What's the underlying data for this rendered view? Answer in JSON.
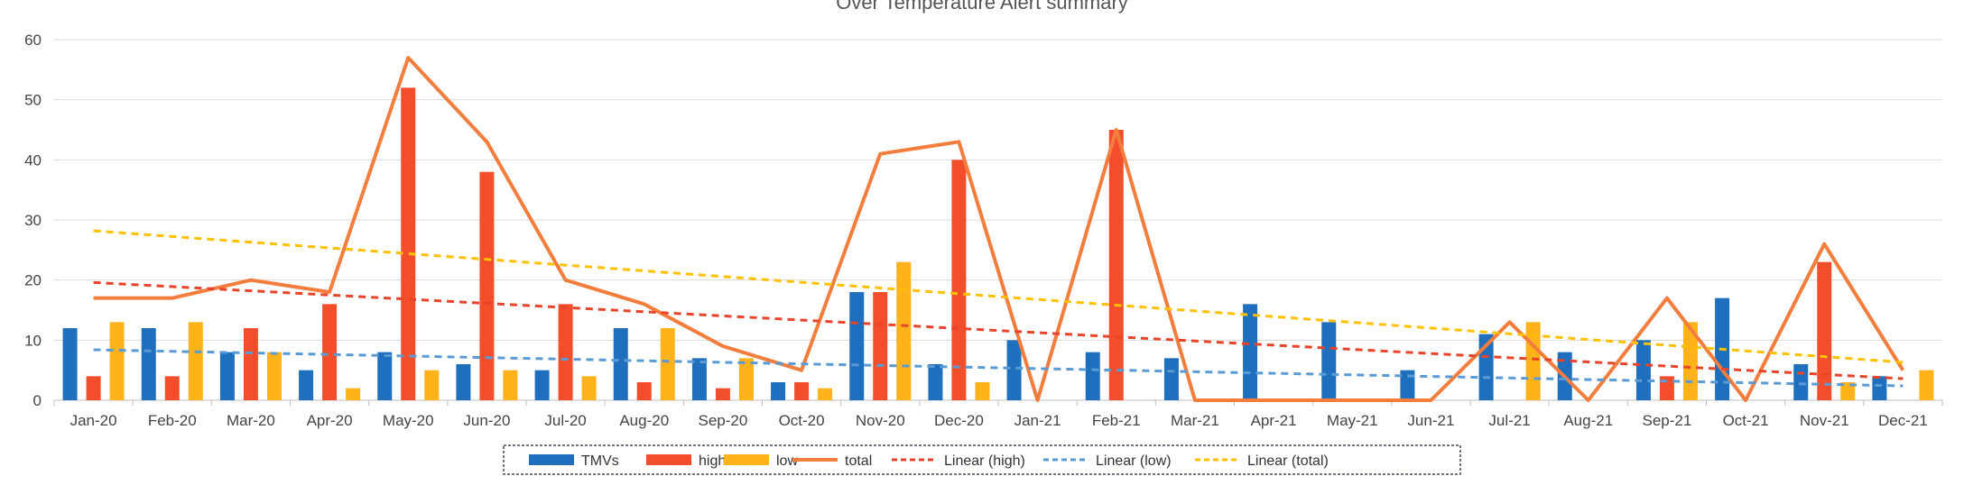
{
  "chart_data": {
    "type": "bar",
    "title": "Over Temperature Alert summary",
    "categories": [
      "Jan-20",
      "Feb-20",
      "Mar-20",
      "Apr-20",
      "May-20",
      "Jun-20",
      "Jul-20",
      "Aug-20",
      "Sep-20",
      "Oct-20",
      "Nov-20",
      "Dec-20",
      "Jan-21",
      "Feb-21",
      "Mar-21",
      "Apr-21",
      "May-21",
      "Jun-21",
      "Jul-21",
      "Aug-21",
      "Sep-21",
      "Oct-21",
      "Nov-21",
      "Dec-21"
    ],
    "ylim": [
      0,
      60
    ],
    "yticks": [
      0,
      10,
      20,
      30,
      40,
      50,
      60
    ],
    "grid": true,
    "legend_position": "bottom",
    "series": [
      {
        "name": "TMVs",
        "kind": "bar",
        "color": "#1f6fbf",
        "values": [
          12,
          12,
          8,
          5,
          8,
          6,
          5,
          12,
          7,
          3,
          18,
          6,
          10,
          8,
          7,
          16,
          13,
          5,
          11,
          8,
          10,
          17,
          6,
          4
        ]
      },
      {
        "name": "high",
        "kind": "bar",
        "color": "#f24e2b",
        "values": [
          4,
          4,
          12,
          16,
          52,
          38,
          16,
          3,
          2,
          3,
          18,
          40,
          0,
          45,
          0,
          0,
          0,
          0,
          0,
          0,
          4,
          0,
          23,
          0
        ]
      },
      {
        "name": "low",
        "kind": "bar",
        "color": "#ffb21a",
        "values": [
          13,
          13,
          8,
          2,
          5,
          5,
          4,
          12,
          7,
          2,
          23,
          3,
          0,
          0,
          0,
          0,
          0,
          0,
          13,
          0,
          13,
          0,
          3,
          5
        ]
      },
      {
        "name": "total",
        "kind": "line",
        "color": "#f27d3c",
        "values": [
          17,
          17,
          20,
          18,
          57,
          43,
          20,
          16,
          9,
          5,
          41,
          43,
          0,
          45,
          0,
          0,
          0,
          0,
          13,
          0,
          17,
          0,
          26,
          5
        ]
      }
    ],
    "trendlines": [
      {
        "name": "Linear (high)",
        "of": "high",
        "color": "#e8442b",
        "start": 19.6,
        "end": 3.6
      },
      {
        "name": "Linear (low)",
        "of": "low",
        "color": "#5b9bd5",
        "start": 8.4,
        "end": 2.4
      },
      {
        "name": "Linear (total)",
        "of": "total",
        "color": "#ffc000",
        "start": 28.2,
        "end": 6.3
      }
    ]
  }
}
